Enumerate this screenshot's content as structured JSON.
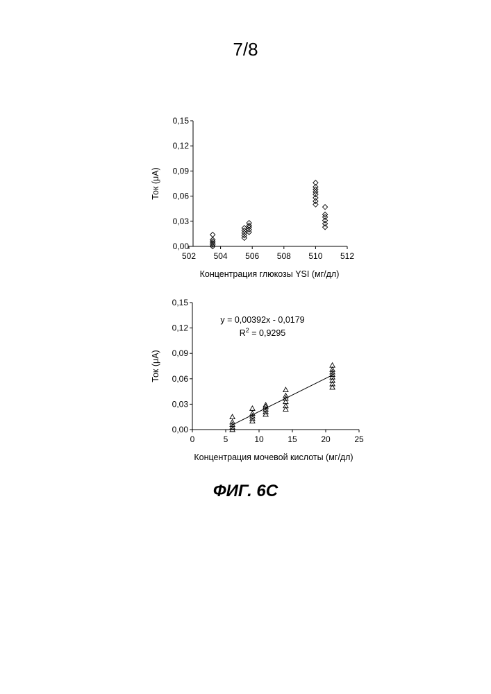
{
  "page": {
    "number": "7/8",
    "caption": "ФИГ. 6C"
  },
  "chart_data": [
    {
      "type": "scatter",
      "title": "",
      "xlabel": "Концентрация глюкозы YSI (мг/дл)",
      "ylabel": "Ток (μA)",
      "xlim": [
        502,
        512
      ],
      "ylim": [
        0,
        0.15
      ],
      "xticks": [
        502,
        504,
        506,
        508,
        510,
        512
      ],
      "xtick_labels": [
        "502",
        "504",
        "506",
        "508",
        "510",
        "512"
      ],
      "yticks": [
        0,
        0.03,
        0.06,
        0.09,
        0.12,
        0.15
      ],
      "ytick_labels": [
        "0,00",
        "0,03",
        "0,06",
        "0,09",
        "0,12",
        "0,15"
      ],
      "grid": false,
      "marker": "diamond",
      "series": [
        {
          "points": [
            [
              503.5,
              0.0
            ],
            [
              503.5,
              0.002
            ],
            [
              503.5,
              0.004
            ],
            [
              503.5,
              0.006
            ],
            [
              503.5,
              0.008
            ],
            [
              503.5,
              0.014
            ],
            [
              505.5,
              0.01
            ],
            [
              505.5,
              0.013
            ],
            [
              505.5,
              0.016
            ],
            [
              505.5,
              0.019
            ],
            [
              505.5,
              0.022
            ],
            [
              505.8,
              0.017
            ],
            [
              505.8,
              0.02
            ],
            [
              505.8,
              0.023
            ],
            [
              505.8,
              0.025
            ],
            [
              505.8,
              0.028
            ],
            [
              510.0,
              0.05
            ],
            [
              510.0,
              0.054
            ],
            [
              510.0,
              0.058
            ],
            [
              510.0,
              0.062
            ],
            [
              510.0,
              0.065
            ],
            [
              510.0,
              0.068
            ],
            [
              510.0,
              0.071
            ],
            [
              510.0,
              0.076
            ],
            [
              510.6,
              0.023
            ],
            [
              510.6,
              0.027
            ],
            [
              510.6,
              0.031
            ],
            [
              510.6,
              0.035
            ],
            [
              510.6,
              0.038
            ],
            [
              510.6,
              0.047
            ]
          ]
        }
      ]
    },
    {
      "type": "scatter",
      "title": "",
      "xlabel": "Концентрация мочевой кислоты (мг/дл)",
      "ylabel": "Ток (μA)",
      "xlim": [
        0,
        25
      ],
      "ylim": [
        0,
        0.15
      ],
      "xticks": [
        0,
        5,
        10,
        15,
        20,
        25
      ],
      "xtick_labels": [
        "0",
        "5",
        "10",
        "15",
        "20",
        "25"
      ],
      "yticks": [
        0,
        0.03,
        0.06,
        0.09,
        0.12,
        0.15
      ],
      "ytick_labels": [
        "0,00",
        "0,03",
        "0,06",
        "0,09",
        "0,12",
        "0,15"
      ],
      "grid": false,
      "marker": "triangle",
      "annotations": [
        "y = 0,00392x - 0,0179",
        "R",
        "2",
        " = 0,9295"
      ],
      "trendline": {
        "slope": 0.00392,
        "intercept": -0.0179,
        "x_from": 6,
        "x_to": 21
      },
      "series": [
        {
          "points": [
            [
              6,
              0.0
            ],
            [
              6,
              0.003
            ],
            [
              6,
              0.006
            ],
            [
              6,
              0.009
            ],
            [
              6,
              0.015
            ],
            [
              9,
              0.01
            ],
            [
              9,
              0.013
            ],
            [
              9,
              0.016
            ],
            [
              9,
              0.019
            ],
            [
              9,
              0.025
            ],
            [
              11,
              0.018
            ],
            [
              11,
              0.021
            ],
            [
              11,
              0.024
            ],
            [
              11,
              0.027
            ],
            [
              11,
              0.029
            ],
            [
              14,
              0.024
            ],
            [
              14,
              0.028
            ],
            [
              14,
              0.033
            ],
            [
              14,
              0.037
            ],
            [
              14,
              0.04
            ],
            [
              14,
              0.047
            ],
            [
              21,
              0.05
            ],
            [
              21,
              0.054
            ],
            [
              21,
              0.058
            ],
            [
              21,
              0.062
            ],
            [
              21,
              0.065
            ],
            [
              21,
              0.068
            ],
            [
              21,
              0.071
            ],
            [
              21,
              0.076
            ]
          ]
        }
      ]
    }
  ]
}
